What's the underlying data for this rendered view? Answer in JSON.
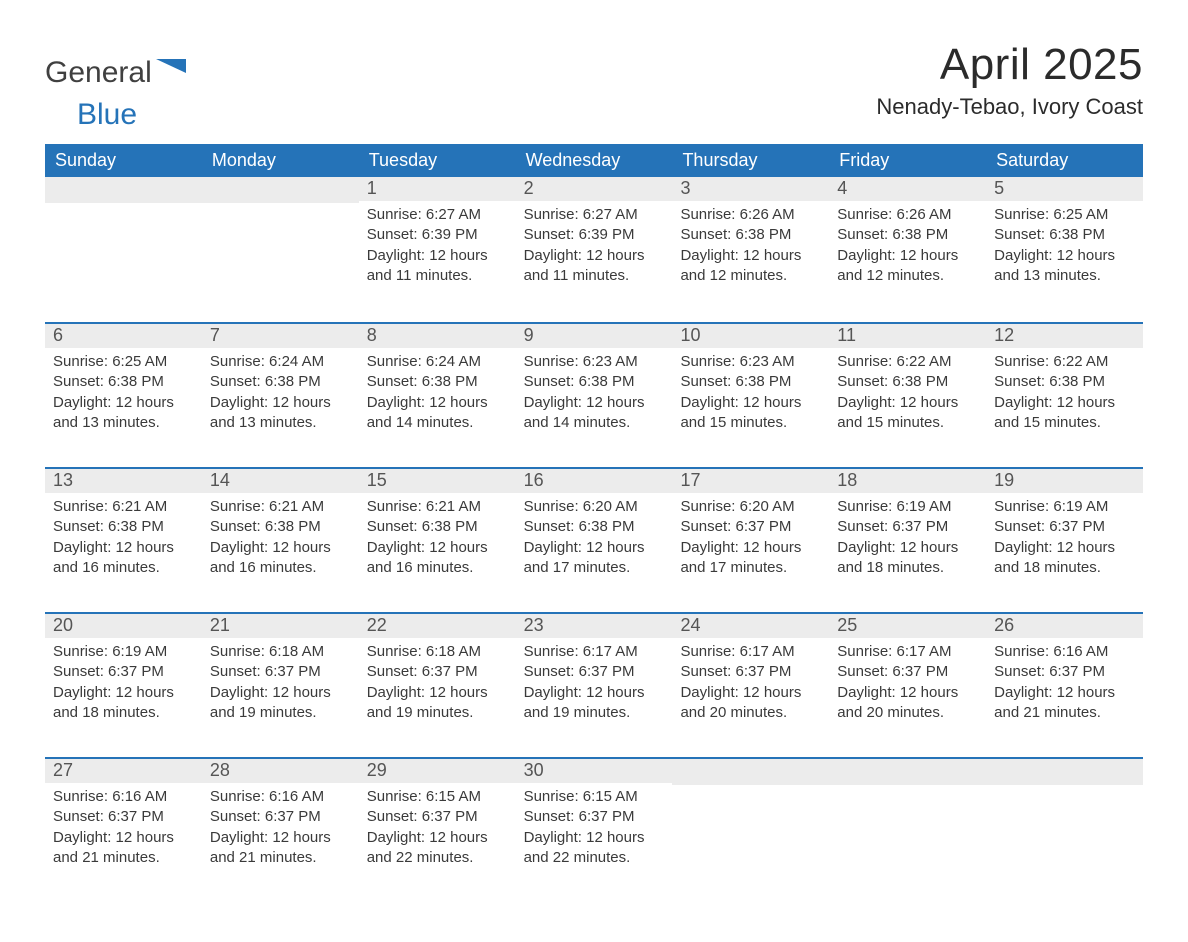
{
  "brand": {
    "word1": "General",
    "word2": "Blue"
  },
  "title": "April 2025",
  "location": "Nenady-Tebao, Ivory Coast",
  "colors": {
    "accent": "#2573b8",
    "headerText": "#ffffff",
    "dayStripe": "#ececec",
    "bodyText": "#3a3a3a",
    "background": "#ffffff"
  },
  "dow": [
    "Sunday",
    "Monday",
    "Tuesday",
    "Wednesday",
    "Thursday",
    "Friday",
    "Saturday"
  ],
  "weeks": [
    [
      null,
      null,
      {
        "n": "1",
        "sunrise": "Sunrise: 6:27 AM",
        "sunset": "Sunset: 6:39 PM",
        "daylight": "Daylight: 12 hours and 11 minutes."
      },
      {
        "n": "2",
        "sunrise": "Sunrise: 6:27 AM",
        "sunset": "Sunset: 6:39 PM",
        "daylight": "Daylight: 12 hours and 11 minutes."
      },
      {
        "n": "3",
        "sunrise": "Sunrise: 6:26 AM",
        "sunset": "Sunset: 6:38 PM",
        "daylight": "Daylight: 12 hours and 12 minutes."
      },
      {
        "n": "4",
        "sunrise": "Sunrise: 6:26 AM",
        "sunset": "Sunset: 6:38 PM",
        "daylight": "Daylight: 12 hours and 12 minutes."
      },
      {
        "n": "5",
        "sunrise": "Sunrise: 6:25 AM",
        "sunset": "Sunset: 6:38 PM",
        "daylight": "Daylight: 12 hours and 13 minutes."
      }
    ],
    [
      {
        "n": "6",
        "sunrise": "Sunrise: 6:25 AM",
        "sunset": "Sunset: 6:38 PM",
        "daylight": "Daylight: 12 hours and 13 minutes."
      },
      {
        "n": "7",
        "sunrise": "Sunrise: 6:24 AM",
        "sunset": "Sunset: 6:38 PM",
        "daylight": "Daylight: 12 hours and 13 minutes."
      },
      {
        "n": "8",
        "sunrise": "Sunrise: 6:24 AM",
        "sunset": "Sunset: 6:38 PM",
        "daylight": "Daylight: 12 hours and 14 minutes."
      },
      {
        "n": "9",
        "sunrise": "Sunrise: 6:23 AM",
        "sunset": "Sunset: 6:38 PM",
        "daylight": "Daylight: 12 hours and 14 minutes."
      },
      {
        "n": "10",
        "sunrise": "Sunrise: 6:23 AM",
        "sunset": "Sunset: 6:38 PM",
        "daylight": "Daylight: 12 hours and 15 minutes."
      },
      {
        "n": "11",
        "sunrise": "Sunrise: 6:22 AM",
        "sunset": "Sunset: 6:38 PM",
        "daylight": "Daylight: 12 hours and 15 minutes."
      },
      {
        "n": "12",
        "sunrise": "Sunrise: 6:22 AM",
        "sunset": "Sunset: 6:38 PM",
        "daylight": "Daylight: 12 hours and 15 minutes."
      }
    ],
    [
      {
        "n": "13",
        "sunrise": "Sunrise: 6:21 AM",
        "sunset": "Sunset: 6:38 PM",
        "daylight": "Daylight: 12 hours and 16 minutes."
      },
      {
        "n": "14",
        "sunrise": "Sunrise: 6:21 AM",
        "sunset": "Sunset: 6:38 PM",
        "daylight": "Daylight: 12 hours and 16 minutes."
      },
      {
        "n": "15",
        "sunrise": "Sunrise: 6:21 AM",
        "sunset": "Sunset: 6:38 PM",
        "daylight": "Daylight: 12 hours and 16 minutes."
      },
      {
        "n": "16",
        "sunrise": "Sunrise: 6:20 AM",
        "sunset": "Sunset: 6:38 PM",
        "daylight": "Daylight: 12 hours and 17 minutes."
      },
      {
        "n": "17",
        "sunrise": "Sunrise: 6:20 AM",
        "sunset": "Sunset: 6:37 PM",
        "daylight": "Daylight: 12 hours and 17 minutes."
      },
      {
        "n": "18",
        "sunrise": "Sunrise: 6:19 AM",
        "sunset": "Sunset: 6:37 PM",
        "daylight": "Daylight: 12 hours and 18 minutes."
      },
      {
        "n": "19",
        "sunrise": "Sunrise: 6:19 AM",
        "sunset": "Sunset: 6:37 PM",
        "daylight": "Daylight: 12 hours and 18 minutes."
      }
    ],
    [
      {
        "n": "20",
        "sunrise": "Sunrise: 6:19 AM",
        "sunset": "Sunset: 6:37 PM",
        "daylight": "Daylight: 12 hours and 18 minutes."
      },
      {
        "n": "21",
        "sunrise": "Sunrise: 6:18 AM",
        "sunset": "Sunset: 6:37 PM",
        "daylight": "Daylight: 12 hours and 19 minutes."
      },
      {
        "n": "22",
        "sunrise": "Sunrise: 6:18 AM",
        "sunset": "Sunset: 6:37 PM",
        "daylight": "Daylight: 12 hours and 19 minutes."
      },
      {
        "n": "23",
        "sunrise": "Sunrise: 6:17 AM",
        "sunset": "Sunset: 6:37 PM",
        "daylight": "Daylight: 12 hours and 19 minutes."
      },
      {
        "n": "24",
        "sunrise": "Sunrise: 6:17 AM",
        "sunset": "Sunset: 6:37 PM",
        "daylight": "Daylight: 12 hours and 20 minutes."
      },
      {
        "n": "25",
        "sunrise": "Sunrise: 6:17 AM",
        "sunset": "Sunset: 6:37 PM",
        "daylight": "Daylight: 12 hours and 20 minutes."
      },
      {
        "n": "26",
        "sunrise": "Sunrise: 6:16 AM",
        "sunset": "Sunset: 6:37 PM",
        "daylight": "Daylight: 12 hours and 21 minutes."
      }
    ],
    [
      {
        "n": "27",
        "sunrise": "Sunrise: 6:16 AM",
        "sunset": "Sunset: 6:37 PM",
        "daylight": "Daylight: 12 hours and 21 minutes."
      },
      {
        "n": "28",
        "sunrise": "Sunrise: 6:16 AM",
        "sunset": "Sunset: 6:37 PM",
        "daylight": "Daylight: 12 hours and 21 minutes."
      },
      {
        "n": "29",
        "sunrise": "Sunrise: 6:15 AM",
        "sunset": "Sunset: 6:37 PM",
        "daylight": "Daylight: 12 hours and 22 minutes."
      },
      {
        "n": "30",
        "sunrise": "Sunrise: 6:15 AM",
        "sunset": "Sunset: 6:37 PM",
        "daylight": "Daylight: 12 hours and 22 minutes."
      },
      null,
      null,
      null
    ]
  ]
}
